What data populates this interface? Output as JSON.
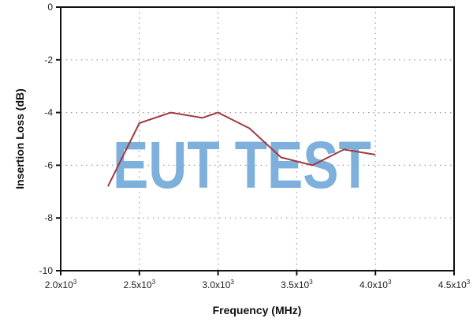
{
  "chart_data": {
    "type": "line",
    "title": "",
    "xlabel": "Frequency (MHz)",
    "ylabel": "Insertion Loss (dB)",
    "xlim": [
      2000,
      4500
    ],
    "ylim": [
      -10,
      0
    ],
    "x_ticks": [
      2000,
      2500,
      3000,
      3500,
      4000,
      4500
    ],
    "x_tick_labels": [
      {
        "mant": "2.0x10",
        "exp": "3"
      },
      {
        "mant": "2.5x10",
        "exp": "3"
      },
      {
        "mant": "3.0x10",
        "exp": "3"
      },
      {
        "mant": "3.5x10",
        "exp": "3"
      },
      {
        "mant": "4.0x10",
        "exp": "3"
      },
      {
        "mant": "4.5x10",
        "exp": "3"
      }
    ],
    "y_ticks": [
      0,
      -2,
      -4,
      -6,
      -8,
      -10
    ],
    "y_tick_labels": [
      "0",
      "-2",
      "-4",
      "-6",
      "-8",
      "-10"
    ],
    "grid": true,
    "grid_style": "dotted",
    "legend": null,
    "series": [
      {
        "name": "Insertion Loss",
        "color": "#a03a3e",
        "x": [
          2300,
          2500,
          2700,
          2900,
          3000,
          3200,
          3400,
          3600,
          3800,
          4000
        ],
        "values": [
          -6.8,
          -4.4,
          -4.0,
          -4.2,
          -4.0,
          -4.6,
          -5.7,
          -6.0,
          -5.4,
          -5.6
        ]
      }
    ],
    "watermark": "EUT TEST",
    "watermark_color": "#7eb0dc"
  }
}
